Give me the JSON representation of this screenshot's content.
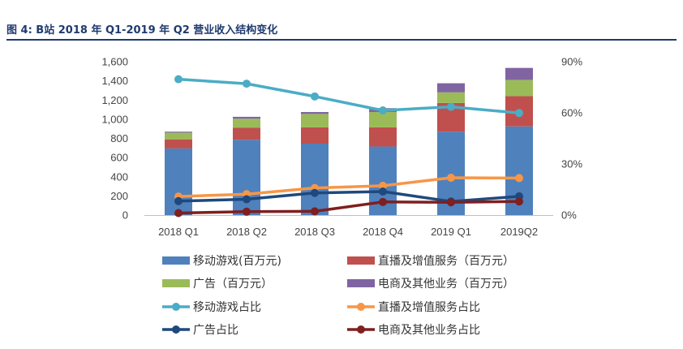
{
  "figure": {
    "title": "图 4: B站 2018 年 Q1-2019 年 Q2 营业收入结构变化"
  },
  "chart_data": {
    "type": "bar",
    "stacked": true,
    "categories": [
      "2018 Q1",
      "2018 Q2",
      "2018 Q3",
      "2018 Q4",
      "2019 Q1",
      "2019Q2"
    ],
    "ylim": [
      0,
      1600
    ],
    "yticks": [
      "1,600",
      "1,400",
      "1,200",
      "1,000",
      "800",
      "600",
      "400",
      "200",
      "0"
    ],
    "ylim_right": [
      0,
      90
    ],
    "yticks_right": [
      "90%",
      "60%",
      "30%",
      "0%"
    ],
    "legend_position": "bottom",
    "grid": false,
    "series": [
      {
        "name": "移动游戏(百万元)",
        "kind": "bar",
        "axis": "left",
        "color": "#4f81bd",
        "values": [
          695,
          785,
          745,
          715,
          870,
          925
        ]
      },
      {
        "name": "直播及增值服务（百万元）",
        "kind": "bar",
        "axis": "left",
        "color": "#c0504d",
        "values": [
          95,
          125,
          170,
          200,
          300,
          315
        ]
      },
      {
        "name": "广告（百万元）",
        "kind": "bar",
        "axis": "left",
        "color": "#9bbb59",
        "values": [
          70,
          95,
          140,
          160,
          110,
          170
        ]
      },
      {
        "name": "电商及其他业务（百万元）",
        "kind": "bar",
        "axis": "left",
        "color": "#8064a2",
        "values": [
          10,
          20,
          20,
          40,
          95,
          125
        ]
      },
      {
        "name": "移动游戏占比",
        "kind": "line",
        "axis": "right",
        "color": "#4bacc6",
        "values": [
          79.7,
          77.1,
          69.6,
          61.4,
          63.5,
          59.9
        ]
      },
      {
        "name": "直播及增值服务占比",
        "kind": "line",
        "axis": "right",
        "color": "#f79646",
        "values": [
          10.9,
          12.3,
          15.9,
          17.2,
          21.9,
          21.7
        ]
      },
      {
        "name": "广告占比",
        "kind": "line",
        "axis": "right",
        "color": "#1f497d",
        "values": [
          8.2,
          9.3,
          13.0,
          13.8,
          8.0,
          11.0
        ]
      },
      {
        "name": "电商及其他业务占比",
        "kind": "line",
        "axis": "right",
        "color": "#7f1f1f",
        "values": [
          1.2,
          2.0,
          2.2,
          7.7,
          7.5,
          8.0
        ]
      }
    ]
  }
}
